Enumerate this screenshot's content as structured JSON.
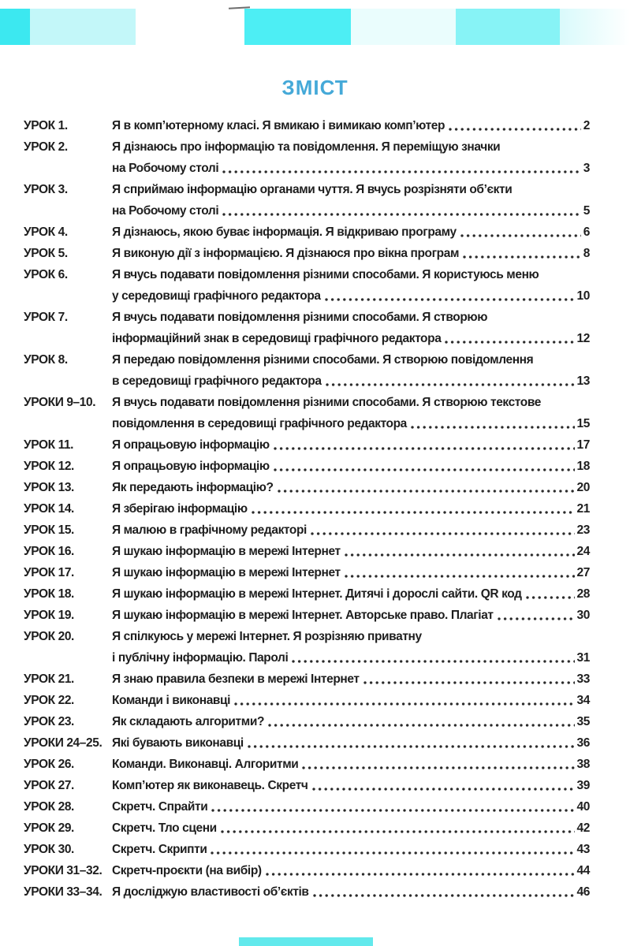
{
  "page_title": {
    "text": "ЗМІСТ"
  },
  "colors": {
    "title": "#45a9d8",
    "text": "#1e1e1e",
    "bar_bright_left": "#3ce8f0",
    "bar_bright_center": "#4deef4",
    "bar_medium_right": "#87f3f6",
    "bar_light": "#c3f7f9",
    "bar_faint": "#eafdfd",
    "bottom_bar": "#62e9ec"
  },
  "toc": {
    "entries": [
      {
        "label": "УРОК 1.",
        "pre": [],
        "last": "Я в комп’ютерному класі. Я вмикаю і вимикаю комп’ютер",
        "page": "2"
      },
      {
        "label": "УРОК 2.",
        "pre": [
          "Я дізнаюсь про інформацію та повідомлення. Я переміщую значки"
        ],
        "last": "на Робочому столі",
        "page": "3"
      },
      {
        "label": "УРОК 3.",
        "pre": [
          "Я сприймаю інформацію органами чуття. Я вчусь розрізняти об’єкти"
        ],
        "last": "на Робочому столі",
        "page": "5"
      },
      {
        "label": "УРОК 4.",
        "pre": [],
        "last": "Я дізнаюсь, якою буває інформація. Я відкриваю програму",
        "page": "6"
      },
      {
        "label": "УРОК 5.",
        "pre": [],
        "last": "Я виконую дії з інформацією. Я дізнаюся про вікна програм",
        "page": "8"
      },
      {
        "label": "УРОК 6.",
        "pre": [
          "Я вчусь подавати повідомлення різними способами. Я користуюсь меню"
        ],
        "last": "у середовищі графічного редактора",
        "page": "10"
      },
      {
        "label": "УРОК 7.",
        "pre": [
          "Я вчусь подавати повідомлення різними способами. Я створюю"
        ],
        "last": "інформаційний знак в середовищі графічного редактора",
        "page": "12"
      },
      {
        "label": "УРОК 8.",
        "pre": [
          "Я передаю повідомлення різними способами. Я створюю повідомлення"
        ],
        "last": "в середовищі графічного редактора",
        "page": "13"
      },
      {
        "label": "УРОКИ 9–10.",
        "pre": [
          "Я вчусь подавати повідомлення різними способами. Я створюю текстове"
        ],
        "last": "повідомлення в середовищі графічного редактора",
        "page": "15"
      },
      {
        "label": "УРОК 11.",
        "pre": [],
        "last": "Я опрацьовую інформацію",
        "page": "17"
      },
      {
        "label": "УРОК 12.",
        "pre": [],
        "last": "Я опрацьовую інформацію",
        "page": "18"
      },
      {
        "label": "УРОК 13.",
        "pre": [],
        "last": "Як передають інформацію?",
        "page": "20"
      },
      {
        "label": "УРОК 14.",
        "pre": [],
        "last": "Я зберігаю інформацію",
        "page": "21"
      },
      {
        "label": "УРОК 15.",
        "pre": [],
        "last": "Я малюю в графічному редакторі",
        "page": "23"
      },
      {
        "label": "УРОК 16.",
        "pre": [],
        "last": "Я шукаю інформацію в мережі Інтернет",
        "page": "24"
      },
      {
        "label": "УРОК 17.",
        "pre": [],
        "last": "Я шукаю інформацію в мережі Інтернет",
        "page": "27"
      },
      {
        "label": "УРОК 18.",
        "pre": [],
        "last": "Я шукаю інформацію в мережі Інтернет. Дитячі і дорослі сайти. QR код",
        "page": "28"
      },
      {
        "label": "УРОК 19.",
        "pre": [],
        "last": "Я шукаю інформацію в мережі Інтернет. Авторське право. Плагіат",
        "page": "30"
      },
      {
        "label": "УРОК 20.",
        "pre": [
          "Я спілкуюсь у мережі Інтернет. Я розрізняю приватну"
        ],
        "last": "і публічну інформацію. Паролі",
        "page": "31"
      },
      {
        "label": "УРОК 21.",
        "pre": [],
        "last": "Я знаю правила безпеки в мережі Інтернет",
        "page": "33"
      },
      {
        "label": "УРОК 22.",
        "pre": [],
        "last": "Команди і виконавці",
        "page": "34"
      },
      {
        "label": "УРОК 23.",
        "pre": [],
        "last": "Як складають алгоритми?",
        "page": "35"
      },
      {
        "label": "УРОКИ 24–25.",
        "pre": [],
        "last": "Які бувають виконавці",
        "page": "36"
      },
      {
        "label": "УРОК 26.",
        "pre": [],
        "last": "Команди. Виконавці. Алгоритми",
        "page": "38"
      },
      {
        "label": "УРОК 27.",
        "pre": [],
        "last": "Комп’ютер як виконавець. Скретч",
        "page": "39"
      },
      {
        "label": "УРОК 28.",
        "pre": [],
        "last": "Скретч. Спрайти",
        "page": "40"
      },
      {
        "label": "УРОК 29.",
        "pre": [],
        "last": "Скретч. Тло сцени",
        "page": "42"
      },
      {
        "label": "УРОК 30.",
        "pre": [],
        "last": "Скретч. Скрипти",
        "page": "43"
      },
      {
        "label": "УРОКИ 31–32.",
        "pre": [],
        "last": "Скретч-проєкти (на вибір)",
        "page": "44"
      },
      {
        "label": "УРОКИ 33–34.",
        "pre": [],
        "last": "Я досліджую властивості об’єктів",
        "page": "46"
      }
    ]
  }
}
